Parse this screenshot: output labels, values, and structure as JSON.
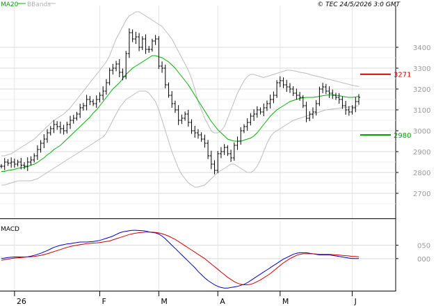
{
  "header": {
    "ma_label": "MA20",
    "bb_label": "BBands",
    "copyright": "© TEC 24/5/2026 3:0 GMT"
  },
  "chart_data": [
    {
      "type": "ohlc",
      "title": "",
      "ylim": [
        2580,
        3600
      ],
      "y_ticks": [
        "3400",
        "3300",
        "3200",
        "3100",
        "3000",
        "2900",
        "2800",
        "2700"
      ],
      "y_tick_values": [
        3400,
        3300,
        3200,
        3100,
        3000,
        2900,
        2800,
        2700
      ],
      "x_labels": [
        "26",
        "F",
        "M",
        "A",
        "M",
        "J"
      ],
      "x_label_positions": [
        4,
        30,
        48,
        66,
        85,
        107
      ],
      "n_periods": 110,
      "levels": [
        {
          "value": 3271,
          "label": "3271",
          "color": "#cc0000"
        },
        {
          "value": 2980,
          "label": "2980",
          "color": "#00a000"
        }
      ],
      "colors": {
        "bars": "#000000",
        "ma": "#00b000",
        "bands": "#bbbbbb"
      },
      "closes": [
        2830,
        2850,
        2845,
        2850,
        2840,
        2850,
        2835,
        2830,
        2850,
        2860,
        2880,
        2910,
        2940,
        2960,
        2990,
        3010,
        3030,
        3020,
        3010,
        3000,
        3030,
        3050,
        3060,
        3080,
        3110,
        3120,
        3150,
        3140,
        3130,
        3150,
        3170,
        3190,
        3230,
        3290,
        3300,
        3320,
        3280,
        3260,
        3370,
        3470,
        3440,
        3450,
        3400,
        3440,
        3390,
        3390,
        3430,
        3440,
        3310,
        3300,
        3220,
        3170,
        3130,
        3100,
        3050,
        3060,
        3080,
        3040,
        3000,
        2990,
        2980,
        2960,
        2940,
        2880,
        2840,
        2810,
        2890,
        2900,
        2920,
        2890,
        2870,
        2930,
        2950,
        3000,
        3020,
        3040,
        3070,
        3080,
        3100,
        3090,
        3110,
        3130,
        3150,
        3170,
        3230,
        3240,
        3220,
        3210,
        3200,
        3180,
        3170,
        3160,
        3120,
        3060,
        3080,
        3090,
        3130,
        3200,
        3210,
        3190,
        3180,
        3170,
        3160,
        3150,
        3120,
        3100,
        3090,
        3110,
        3140,
        3160
      ],
      "ma20": [
        2805,
        2805,
        2810,
        2812,
        2815,
        2820,
        2822,
        2825,
        2828,
        2835,
        2840,
        2848,
        2860,
        2870,
        2885,
        2895,
        2910,
        2920,
        2930,
        2945,
        2960,
        2975,
        2990,
        3005,
        3020,
        3035,
        3050,
        3065,
        3085,
        3100,
        3120,
        3140,
        3160,
        3180,
        3200,
        3215,
        3230,
        3250,
        3270,
        3285,
        3300,
        3310,
        3320,
        3330,
        3340,
        3350,
        3360,
        3360,
        3355,
        3350,
        3340,
        3330,
        3315,
        3300,
        3280,
        3260,
        3240,
        3220,
        3195,
        3170,
        3145,
        3120,
        3095,
        3070,
        3045,
        3025,
        3005,
        2990,
        2975,
        2960,
        2955,
        2950,
        2950,
        2950,
        2955,
        2960,
        2965,
        2975,
        2990,
        3010,
        3030,
        3050,
        3070,
        3085,
        3100,
        3110,
        3120,
        3130,
        3140,
        3145,
        3150,
        3155,
        3158,
        3160,
        3160,
        3160,
        3162,
        3165,
        3168,
        3170,
        3172,
        3172,
        3170,
        3168,
        3165,
        3162,
        3160,
        3160,
        3162,
        3165
      ],
      "bb_upper": [
        2880,
        2880,
        2885,
        2890,
        2900,
        2910,
        2920,
        2930,
        2940,
        2950,
        2960,
        2975,
        2990,
        3005,
        3020,
        3035,
        3050,
        3060,
        3070,
        3080,
        3095,
        3110,
        3130,
        3150,
        3170,
        3190,
        3210,
        3230,
        3250,
        3270,
        3290,
        3310,
        3330,
        3360,
        3400,
        3440,
        3470,
        3500,
        3530,
        3550,
        3560,
        3570,
        3570,
        3560,
        3550,
        3540,
        3530,
        3520,
        3510,
        3500,
        3480,
        3460,
        3440,
        3410,
        3380,
        3350,
        3320,
        3290,
        3250,
        3200,
        3140,
        3100,
        3060,
        3030,
        3000,
        2990,
        2990,
        3000,
        3020,
        3060,
        3100,
        3140,
        3180,
        3210,
        3240,
        3260,
        3270,
        3270,
        3265,
        3260,
        3255,
        3260,
        3265,
        3270,
        3275,
        3280,
        3285,
        3290,
        3290,
        3288,
        3285,
        3280,
        3278,
        3275,
        3270,
        3265,
        3262,
        3258,
        3255,
        3250,
        3246,
        3242,
        3238,
        3234,
        3230,
        3226,
        3222,
        3218,
        3215,
        3212
      ],
      "bb_lower": [
        2740,
        2740,
        2745,
        2750,
        2755,
        2760,
        2760,
        2760,
        2760,
        2760,
        2765,
        2770,
        2780,
        2790,
        2800,
        2810,
        2820,
        2830,
        2840,
        2850,
        2860,
        2870,
        2880,
        2890,
        2900,
        2910,
        2920,
        2930,
        2940,
        2950,
        2960,
        2970,
        2990,
        3020,
        3050,
        3080,
        3110,
        3130,
        3150,
        3160,
        3170,
        3180,
        3190,
        3190,
        3190,
        3180,
        3160,
        3140,
        3100,
        3050,
        3000,
        2950,
        2900,
        2860,
        2820,
        2790,
        2770,
        2750,
        2740,
        2730,
        2730,
        2735,
        2740,
        2755,
        2770,
        2785,
        2800,
        2810,
        2820,
        2830,
        2840,
        2840,
        2830,
        2820,
        2810,
        2800,
        2800,
        2810,
        2830,
        2860,
        2900,
        2940,
        2970,
        2990,
        3000,
        3010,
        3020,
        3030,
        3040,
        3050,
        3055,
        3060,
        3065,
        3070,
        3075,
        3080,
        3085,
        3090,
        3095,
        3100,
        3102,
        3104,
        3106,
        3108,
        3110,
        3112,
        3114,
        3116,
        3118,
        3120
      ]
    },
    {
      "type": "line",
      "title": "MACD",
      "ylim": [
        -120,
        140
      ],
      "y_ticks": [
        "050",
        "000"
      ],
      "y_tick_values": [
        50,
        0
      ],
      "series": [
        {
          "name": "",
          "color": "#0000cc",
          "values": [
            0,
            2,
            4,
            5,
            6,
            6,
            6,
            6,
            7,
            9,
            12,
            16,
            20,
            25,
            30,
            36,
            42,
            46,
            50,
            52,
            55,
            56,
            58,
            60,
            62,
            62,
            62,
            63,
            64,
            66,
            68,
            72,
            76,
            80,
            84,
            90,
            96,
            100,
            102,
            104,
            106,
            106,
            105,
            104,
            103,
            100,
            98,
            96,
            92,
            84,
            74,
            62,
            50,
            38,
            26,
            14,
            2,
            -10,
            -22,
            -34,
            -48,
            -60,
            -72,
            -82,
            -90,
            -98,
            -104,
            -108,
            -110,
            -110,
            -108,
            -106,
            -104,
            -100,
            -96,
            -90,
            -82,
            -74,
            -66,
            -58,
            -50,
            -42,
            -34,
            -26,
            -18,
            -10,
            -2,
            4,
            10,
            16,
            20,
            22,
            22,
            22,
            20,
            18,
            16,
            14,
            14,
            14,
            14,
            12,
            10,
            8,
            6,
            4,
            2,
            0,
            0,
            0
          ]
        },
        {
          "name": "",
          "color": "#cc0000",
          "values": [
            -6,
            -4,
            -2,
            0,
            2,
            3,
            4,
            5,
            6,
            7,
            8,
            10,
            12,
            15,
            18,
            22,
            26,
            30,
            34,
            38,
            42,
            45,
            48,
            50,
            52,
            54,
            56,
            57,
            58,
            59,
            60,
            62,
            64,
            66,
            70,
            74,
            78,
            82,
            86,
            90,
            93,
            95,
            97,
            98,
            99,
            99,
            99,
            98,
            96,
            93,
            89,
            84,
            78,
            72,
            64,
            56,
            48,
            40,
            32,
            24,
            16,
            8,
            0,
            -10,
            -20,
            -30,
            -40,
            -50,
            -60,
            -70,
            -78,
            -86,
            -92,
            -96,
            -98,
            -98,
            -96,
            -92,
            -86,
            -80,
            -72,
            -64,
            -56,
            -46,
            -36,
            -26,
            -16,
            -8,
            0,
            6,
            12,
            16,
            18,
            18,
            18,
            18,
            17,
            16,
            16,
            16,
            16,
            15,
            14,
            13,
            12,
            11,
            10,
            8,
            8,
            7
          ]
        }
      ]
    }
  ]
}
